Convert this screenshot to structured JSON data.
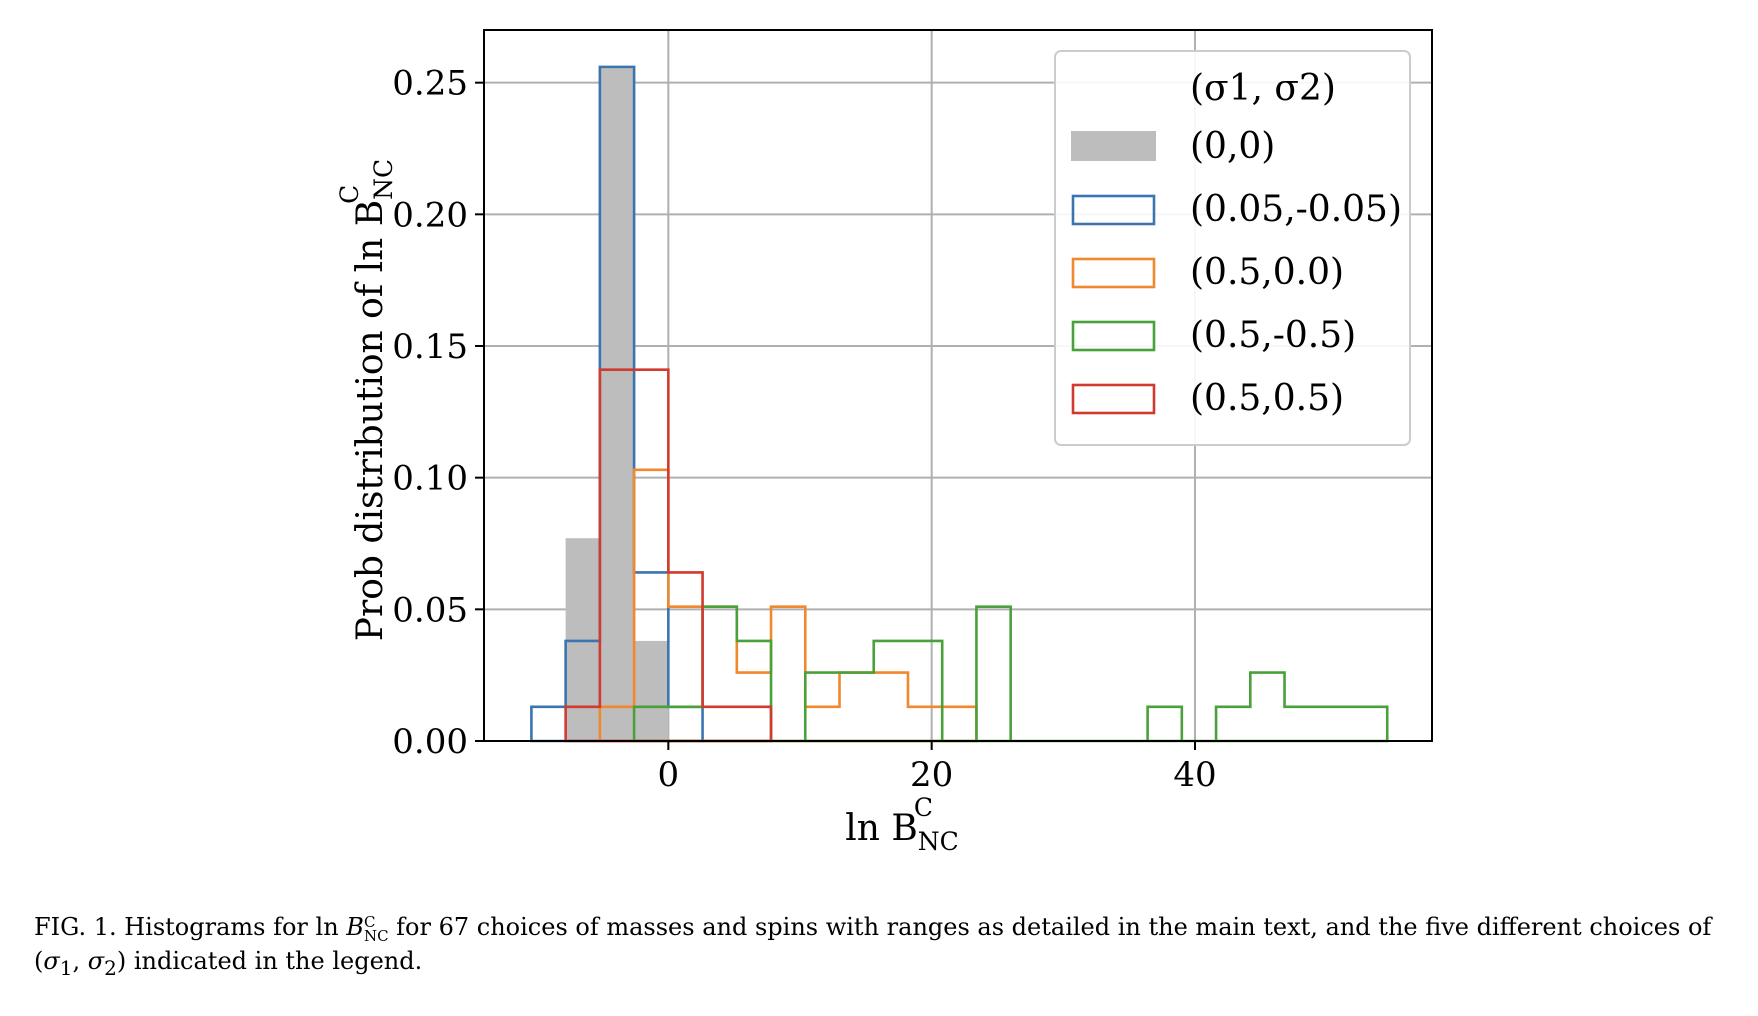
{
  "chart_data": {
    "type": "histogram",
    "xlabel": "ln B",
    "xlabel_sup": "C",
    "xlabel_sub": "NC",
    "ylabel": "Prob distribution of  ln B",
    "ylabel_sup": "C",
    "ylabel_sub": "NC",
    "xlim": [
      -14,
      58
    ],
    "ylim": [
      0,
      0.27
    ],
    "xticks": [
      0,
      20,
      40
    ],
    "yticks": [
      0.0,
      0.05,
      0.1,
      0.15,
      0.2,
      0.25
    ],
    "ytick_labels": [
      "0.00",
      "0.05",
      "0.10",
      "0.15",
      "0.20",
      "0.25"
    ],
    "grid": true,
    "legend_title": "(σ1, σ2)",
    "legend_placement": "top-right",
    "series": [
      {
        "name": "(0,0)",
        "style": "filled",
        "color": "#bdbdbd",
        "bins": [
          {
            "x0": -7.8,
            "x1": -5.2,
            "y": 0.077
          },
          {
            "x0": -5.2,
            "x1": -2.6,
            "y": 0.256
          },
          {
            "x0": -2.6,
            "x1": 0.0,
            "y": 0.038
          }
        ]
      },
      {
        "name": "(0.05,-0.05)",
        "style": "step",
        "color": "#3a75b0",
        "bins": [
          {
            "x0": -10.4,
            "x1": -7.8,
            "y": 0.013
          },
          {
            "x0": -7.8,
            "x1": -5.2,
            "y": 0.038
          },
          {
            "x0": -5.2,
            "x1": -2.6,
            "y": 0.256
          },
          {
            "x0": -2.6,
            "x1": 0.0,
            "y": 0.064
          },
          {
            "x0": 0.0,
            "x1": 2.6,
            "y": 0.013
          }
        ]
      },
      {
        "name": "(0.5,0.0)",
        "style": "step",
        "color": "#f0882d",
        "bins": [
          {
            "x0": -5.2,
            "x1": -2.6,
            "y": 0.013
          },
          {
            "x0": -2.6,
            "x1": 0.0,
            "y": 0.103
          },
          {
            "x0": 0.0,
            "x1": 2.6,
            "y": 0.051
          },
          {
            "x0": 2.6,
            "x1": 5.2,
            "y": 0.051
          },
          {
            "x0": 5.2,
            "x1": 7.8,
            "y": 0.026
          },
          {
            "x0": 7.8,
            "x1": 10.4,
            "y": 0.051
          },
          {
            "x0": 10.4,
            "x1": 13.0,
            "y": 0.013
          },
          {
            "x0": 13.0,
            "x1": 15.6,
            "y": 0.026
          },
          {
            "x0": 15.6,
            "x1": 18.2,
            "y": 0.026
          },
          {
            "x0": 18.2,
            "x1": 20.8,
            "y": 0.013
          },
          {
            "x0": 20.8,
            "x1": 23.4,
            "y": 0.013
          }
        ]
      },
      {
        "name": "(0.5,-0.5)",
        "style": "step",
        "color": "#4aa03b",
        "bins": [
          {
            "x0": -2.6,
            "x1": 0.0,
            "y": 0.013
          },
          {
            "x0": 0.0,
            "x1": 2.6,
            "y": 0.013
          },
          {
            "x0": 2.6,
            "x1": 5.2,
            "y": 0.051
          },
          {
            "x0": 5.2,
            "x1": 7.8,
            "y": 0.038
          },
          {
            "x0": 7.8,
            "x1": 10.4,
            "y": 0.0
          },
          {
            "x0": 10.4,
            "x1": 13.0,
            "y": 0.026
          },
          {
            "x0": 13.0,
            "x1": 15.6,
            "y": 0.026
          },
          {
            "x0": 15.6,
            "x1": 18.2,
            "y": 0.038
          },
          {
            "x0": 18.2,
            "x1": 20.8,
            "y": 0.038
          },
          {
            "x0": 20.8,
            "x1": 23.4,
            "y": 0.0
          },
          {
            "x0": 23.4,
            "x1": 26.0,
            "y": 0.051
          },
          {
            "x0": 26.0,
            "x1": 36.4,
            "y": 0.0
          },
          {
            "x0": 36.4,
            "x1": 39.0,
            "y": 0.013
          },
          {
            "x0": 39.0,
            "x1": 41.6,
            "y": 0.0
          },
          {
            "x0": 41.6,
            "x1": 44.2,
            "y": 0.013
          },
          {
            "x0": 44.2,
            "x1": 46.8,
            "y": 0.026
          },
          {
            "x0": 46.8,
            "x1": 54.6,
            "y": 0.013
          }
        ]
      },
      {
        "name": "(0.5,0.5)",
        "style": "step",
        "color": "#d03a2f",
        "bins": [
          {
            "x0": -7.8,
            "x1": -5.2,
            "y": 0.013
          },
          {
            "x0": -5.2,
            "x1": -2.6,
            "y": 0.141
          },
          {
            "x0": -2.6,
            "x1": 0.0,
            "y": 0.141
          },
          {
            "x0": 0.0,
            "x1": 2.6,
            "y": 0.064
          },
          {
            "x0": 2.6,
            "x1": 5.2,
            "y": 0.013
          },
          {
            "x0": 5.2,
            "x1": 7.8,
            "y": 0.013
          }
        ]
      }
    ]
  },
  "caption": "FIG. 1. Histograms for ln B_NC^C for 67 choices of masses and spins with ranges as detailed in the main text, and the five different choices of (σ1, σ2) indicated in the legend.",
  "caption_parts": {
    "p1": "FIG. 1. Histograms for ln ",
    "p2": "B",
    "p2_sub": "NC",
    "p2_sup": "C",
    "p3": " for 67 choices of masses and spins with ranges as detailed in the main text, and the five different choices of (",
    "sigma1": "σ",
    "s1": "1",
    "comma": ", ",
    "sigma2": "σ",
    "s2": "2",
    "p4": ") indicated in the legend."
  }
}
